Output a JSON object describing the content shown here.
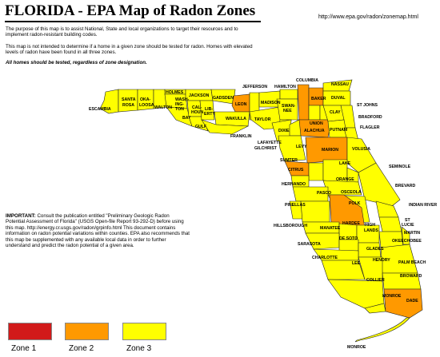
{
  "title": "FLORIDA - EPA Map of Radon Zones",
  "url": "http://www.epa.gov/radon/zonemap.html",
  "paragraphs": {
    "purpose": "The purpose of this map is to assist National, State and local organizations to target their resources and to implement radon-resistant building codes.",
    "not_intended": "This map is not intended to determine if a home in a given zone should be tested for radon. Homes with elevated levels of radon have been found in all three zones.",
    "all_homes": "All homes should be tested, regardless of zone designation."
  },
  "important": {
    "label": "IMPORTANT:",
    "text": "Consult the publication entitled \"Preliminary Geologic Radon Potential Assessment of Florida\" (USGS Open-file Report 93-292-D) before using this map. http://energy.cr.usgs.gov/radon/grpinfo.html This document contains information on radon potential variations within counties. EPA also recommends that this map be supplemented with any available local data in order to further understand and predict the radon potential of a given area."
  },
  "legend": [
    {
      "label": "Zone 1",
      "color": "#d11a1a"
    },
    {
      "label": "Zone 2",
      "color": "#ff9900"
    },
    {
      "label": "Zone 3",
      "color": "#ffff00"
    }
  ],
  "zone_colors": {
    "zone2": "#ff9900",
    "zone3": "#ffff00"
  },
  "counties": {
    "escambia": "ESCAMBIA",
    "santa_rosa_1": "SANTA",
    "santa_rosa_2": "ROSA",
    "okaloosa_1": "OKA-",
    "okaloosa_2": "LOOSA",
    "walton": "WALTON",
    "holmes": "HOLMES",
    "washington_1": "WASH-",
    "washington_2": "ING-",
    "washington_3": "TON",
    "jackson": "JACKSON",
    "bay": "BAY",
    "calhoun_1": "CAL-",
    "calhoun_2": "HOUN",
    "gulf": "GULF",
    "liberty_1": "LIB-",
    "liberty_2": "ERTY",
    "gadsden": "GADSDEN",
    "leon": "LEON",
    "wakulla": "WAKULLA",
    "franklin": "FRANKLIN",
    "jefferson": "JEFFERSON",
    "madison": "MADISON",
    "taylor": "TAYLOR",
    "hamilton": "HAMILTON",
    "suwannee_1": "SWAN-",
    "suwannee_2": "NEE",
    "lafayette": "LAFAYETTE",
    "dixie": "DIXIE",
    "columbia": "COLUMBIA",
    "baker": "BAKER",
    "union": "UNION",
    "bradford": "BRADFORD",
    "alachua": "ALACHUA",
    "gilchrist": "GILCHRIST",
    "levy": "LEVY",
    "nassau": "NASSAU",
    "duval": "DUVAL",
    "st_johns": "ST JOHNS",
    "clay": "CLAY",
    "putnam": "PUTNAM",
    "flagler": "FLAGLER",
    "marion": "MARION",
    "volusia": "VOLUSIA",
    "citrus": "CITRUS",
    "sumter": "SUMTER",
    "lake": "LAKE",
    "seminole": "SEMINOLE",
    "orange": "ORANGE",
    "hernando": "HERNANDO",
    "pasco": "PASCO",
    "brevard": "BREVARD",
    "osceola": "OSCEOLA",
    "pinellas": "PINELLAS",
    "polk": "POLK",
    "indian_river": "INDIAN RIVER",
    "hillsborough": "HILLSBOROUGH",
    "manatee": "MANATEE",
    "hardee": "HARDEE",
    "highlands_1": "HIGH",
    "highlands_2": "LANDS",
    "st_lucie_1": "ST",
    "st_lucie_2": "LUCIE",
    "okeechobee": "OKEECHOBEE",
    "martin": "MARTIN",
    "sarasota": "SARASOTA",
    "desoto": "DE SOTO",
    "glades": "GLADES",
    "charlotte": "CHARLOTTE",
    "palm_beach": "PALM BEACH",
    "lee": "LEE",
    "hendry": "HENDRY",
    "broward": "BROWARD",
    "collier": "COLLIER",
    "monroe_1": "MONROE",
    "dade": "DADE",
    "monroe_2": "MONROE"
  }
}
